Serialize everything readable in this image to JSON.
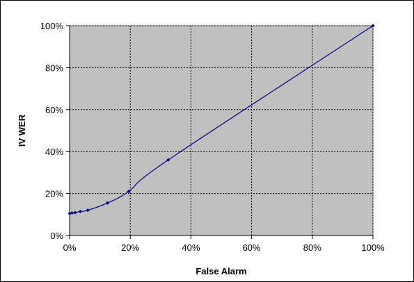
{
  "chart_data": {
    "type": "line",
    "title": "",
    "xlabel": "False Alarm",
    "ylabel": "IV WER",
    "xlim": [
      0,
      100
    ],
    "ylim": [
      0,
      100
    ],
    "x_ticks": [
      "0%",
      "20%",
      "40%",
      "60%",
      "80%",
      "100%"
    ],
    "y_ticks": [
      "0%",
      "20%",
      "40%",
      "60%",
      "80%",
      "100%"
    ],
    "grid": true,
    "legend": "none",
    "series": [
      {
        "color": "#000080",
        "x": [
          0.0,
          0.8,
          1.8,
          3.5,
          6.0,
          12.5,
          19.5,
          32.5,
          100.0
        ],
        "y": [
          10.5,
          10.7,
          10.9,
          11.4,
          12.0,
          15.5,
          21.0,
          36.0,
          100.0
        ]
      }
    ]
  },
  "colors": {
    "plot_background": "#c0c0c0",
    "grid": "#000000",
    "line": "#000080"
  }
}
